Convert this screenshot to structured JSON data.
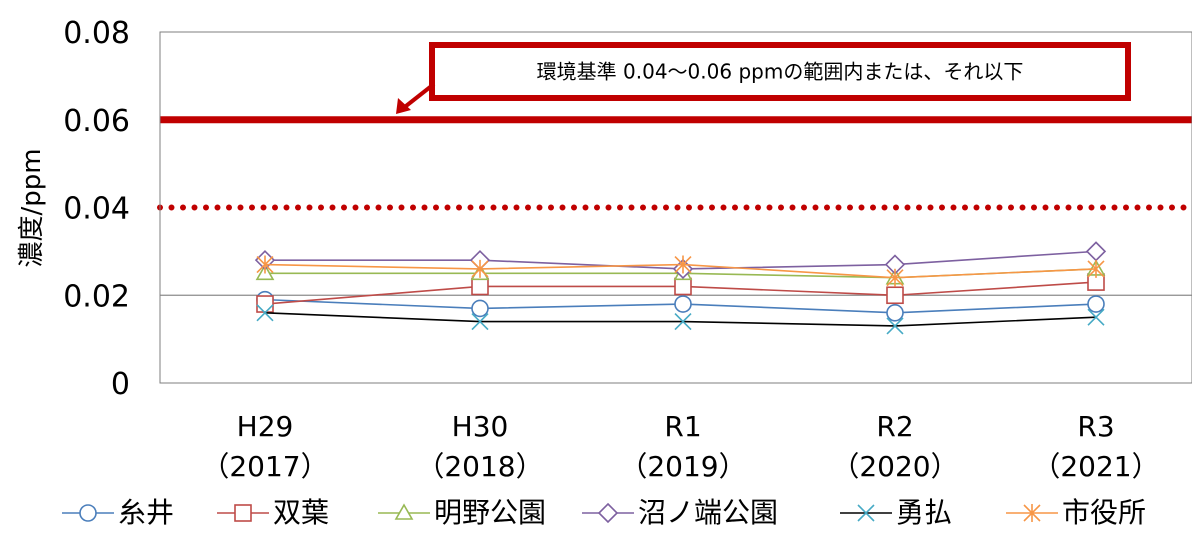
{
  "chart_data": {
    "type": "line",
    "xlabel": "",
    "ylabel": "濃度/ppm",
    "ylim": [
      0,
      0.08
    ],
    "yticks": [
      "0",
      "0.02",
      "0.04",
      "0.06",
      "0.08"
    ],
    "grid": "y at 0.02",
    "legend_position": "bottom",
    "categories": [
      {
        "top": "H29",
        "bottom": "（2017）"
      },
      {
        "top": "H30",
        "bottom": "（2018）"
      },
      {
        "top": "R1",
        "bottom": "（2019）"
      },
      {
        "top": "R2",
        "bottom": "（2020）"
      },
      {
        "top": "R3",
        "bottom": "（2021）"
      }
    ],
    "series": [
      {
        "name": "糸井",
        "color": "#4a7ebb",
        "marker": "circle",
        "values": [
          0.019,
          0.017,
          0.018,
          0.016,
          0.018
        ]
      },
      {
        "name": "双葉",
        "color": "#be4b48",
        "marker": "square",
        "values": [
          0.018,
          0.022,
          0.022,
          0.02,
          0.023
        ]
      },
      {
        "name": "明野公園",
        "color": "#98b954",
        "marker": "triangle",
        "values": [
          0.025,
          0.025,
          0.025,
          0.024,
          0.026
        ]
      },
      {
        "name": "沼ノ端公園",
        "color": "#7d60a0",
        "marker": "diamond",
        "values": [
          0.028,
          0.028,
          0.026,
          0.027,
          0.03
        ]
      },
      {
        "name": "勇払",
        "color": "#46aac5",
        "line_color": "#000000",
        "marker": "x",
        "values": [
          0.016,
          0.014,
          0.014,
          0.013,
          0.015
        ]
      },
      {
        "name": "市役所",
        "color": "#f79646",
        "marker": "asterisk",
        "values": [
          0.027,
          0.026,
          0.027,
          0.024,
          0.026
        ]
      }
    ],
    "reference_lines": [
      {
        "value": 0.06,
        "style": "solid",
        "color": "#c00000"
      },
      {
        "value": 0.04,
        "style": "dotted",
        "color": "#c00000"
      }
    ],
    "annotation": {
      "text": "環境基準 0.04～0.06 ppmの範囲内または、それ以下",
      "border_color": "#c00000"
    }
  }
}
